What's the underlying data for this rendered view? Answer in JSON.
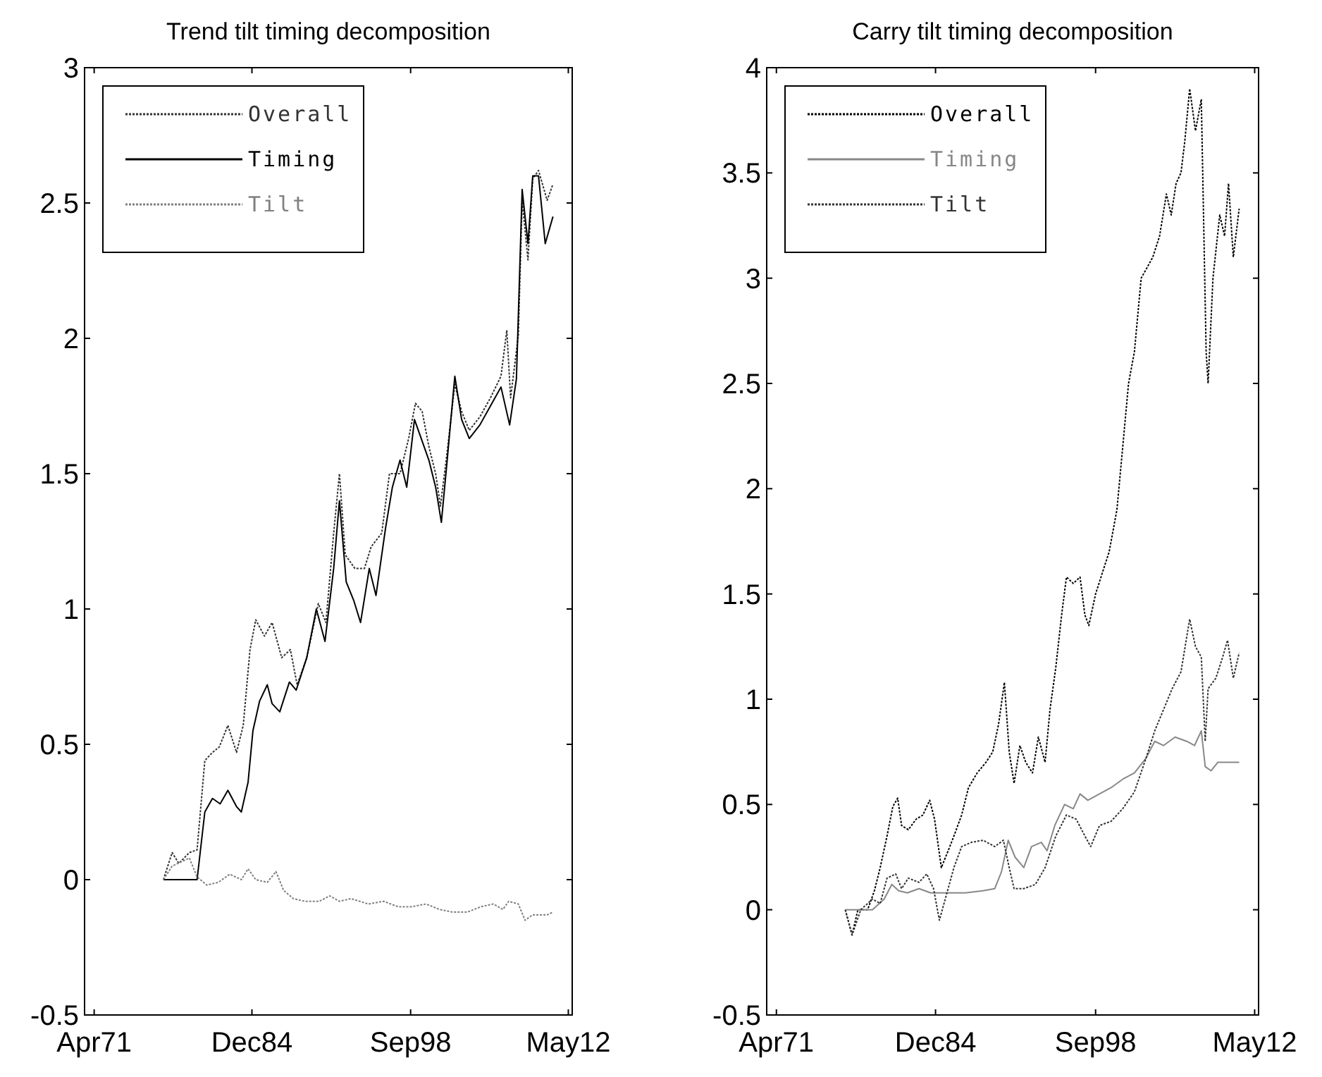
{
  "chart_data": [
    {
      "type": "line",
      "title": "Trend tilt timing decomposition",
      "xlim": [
        "1970-06",
        "2012-09"
      ],
      "xticks": [
        {
          "value": "1971-04",
          "label": "Apr71"
        },
        {
          "value": "1984-12",
          "label": "Dec84"
        },
        {
          "value": "1998-09",
          "label": "Sep98"
        },
        {
          "value": "2012-05",
          "label": "May12"
        }
      ],
      "ylim": [
        -0.5,
        3
      ],
      "yticks": [
        -0.5,
        0,
        0.5,
        1,
        1.5,
        2,
        2.5,
        3
      ],
      "legend": "top left",
      "grid": false,
      "series": [
        {
          "name": "Overall",
          "color": "#333333",
          "line_style": "dotted",
          "x": [
            "1977-04",
            "1978-01",
            "1978-08",
            "1979-07",
            "1980-03",
            "1980-11",
            "1981-07",
            "1982-02",
            "1982-11",
            "1983-08",
            "1984-03",
            "1984-10",
            "1985-04",
            "1986-01",
            "1986-09",
            "1987-07",
            "1988-04",
            "1988-11",
            "1989-09",
            "1990-09",
            "1991-05",
            "1992-01",
            "1992-07",
            "1993-01",
            "1993-11",
            "1994-09",
            "1995-04",
            "1996-03",
            "1996-11",
            "1997-10",
            "1998-07",
            "1999-02",
            "1999-09",
            "2000-04",
            "2000-11",
            "2001-04",
            "2001-11",
            "2002-07",
            "2003-02",
            "2003-10",
            "2004-09",
            "2005-08",
            "2006-07",
            "2007-01",
            "2007-05",
            "2008-01",
            "2008-05",
            "2008-11",
            "2009-04",
            "2009-10",
            "2010-07",
            "2011-01"
          ],
          "values": [
            0,
            0.1,
            0.06,
            0.1,
            0.11,
            0.44,
            0.47,
            0.49,
            0.57,
            0.47,
            0.57,
            0.85,
            0.96,
            0.9,
            0.95,
            0.82,
            0.85,
            0.72,
            0.82,
            1.02,
            0.95,
            1.28,
            1.5,
            1.2,
            1.15,
            1.15,
            1.23,
            1.28,
            1.5,
            1.5,
            1.63,
            1.76,
            1.73,
            1.6,
            1.5,
            1.38,
            1.58,
            1.83,
            1.73,
            1.66,
            1.71,
            1.78,
            1.86,
            2.03,
            1.78,
            2.01,
            2.51,
            2.29,
            2.59,
            2.62,
            2.51,
            2.57
          ]
        },
        {
          "name": "Timing",
          "color": "#000000",
          "line_style": "solid",
          "x": [
            "1977-04",
            "1980-03",
            "1980-11",
            "1981-07",
            "1982-03",
            "1982-11",
            "1983-08",
            "1984-01",
            "1984-08",
            "1985-01",
            "1985-08",
            "1986-04",
            "1986-09",
            "1987-05",
            "1988-03",
            "1988-10",
            "1989-09",
            "1990-07",
            "1991-04",
            "1992-01",
            "1992-07",
            "1993-02",
            "1993-10",
            "1994-05",
            "1995-02",
            "1995-09",
            "1996-07",
            "1997-02",
            "1997-10",
            "1998-05",
            "1999-01",
            "1999-09",
            "2000-04",
            "2000-11",
            "2001-05",
            "2001-11",
            "2002-07",
            "2003-02",
            "2003-10",
            "2004-09",
            "2005-08",
            "2006-07",
            "2007-04",
            "2007-11",
            "2008-05",
            "2008-11",
            "2009-04",
            "2009-10",
            "2010-05",
            "2011-01"
          ],
          "values": [
            0,
            0,
            0.25,
            0.3,
            0.28,
            0.33,
            0.27,
            0.25,
            0.36,
            0.55,
            0.66,
            0.72,
            0.65,
            0.62,
            0.73,
            0.7,
            0.82,
            1,
            0.88,
            1.15,
            1.4,
            1.1,
            1.03,
            0.95,
            1.15,
            1.05,
            1.3,
            1.45,
            1.55,
            1.45,
            1.7,
            1.62,
            1.55,
            1.45,
            1.32,
            1.55,
            1.86,
            1.7,
            1.63,
            1.68,
            1.75,
            1.82,
            1.68,
            1.85,
            2.55,
            2.35,
            2.6,
            2.6,
            2.35,
            2.45
          ]
        },
        {
          "name": "Tilt",
          "color": "#808080",
          "line_style": "dotted",
          "x": [
            "1977-04",
            "1978-01",
            "1979-07",
            "1980-03",
            "1981-01",
            "1982-01",
            "1983-01",
            "1984-01",
            "1984-08",
            "1985-04",
            "1986-04",
            "1987-01",
            "1987-09",
            "1988-07",
            "1989-07",
            "1990-10",
            "1991-09",
            "1992-07",
            "1993-07",
            "1995-01",
            "1996-05",
            "1997-08",
            "1998-10",
            "2000-01",
            "2001-03",
            "2002-05",
            "2003-08",
            "2004-10",
            "2005-11",
            "2006-09",
            "2007-03",
            "2008-01",
            "2008-08",
            "2009-04",
            "2010-07",
            "2011-01"
          ],
          "values": [
            0,
            0.05,
            0.08,
            0.01,
            -0.02,
            -0.01,
            0.02,
            0,
            0.04,
            0,
            -0.01,
            0.03,
            -0.04,
            -0.07,
            -0.08,
            -0.08,
            -0.06,
            -0.08,
            -0.07,
            -0.09,
            -0.08,
            -0.1,
            -0.1,
            -0.09,
            -0.11,
            -0.12,
            -0.12,
            -0.1,
            -0.09,
            -0.11,
            -0.08,
            -0.09,
            -0.15,
            -0.13,
            -0.13,
            -0.12
          ]
        }
      ]
    },
    {
      "type": "line",
      "title": "Carry tilt timing decomposition",
      "xlim": [
        "1970-06",
        "2012-09"
      ],
      "xticks": [
        {
          "value": "1971-04",
          "label": "Apr71"
        },
        {
          "value": "1984-12",
          "label": "Dec84"
        },
        {
          "value": "1998-09",
          "label": "Sep98"
        },
        {
          "value": "2012-05",
          "label": "May12"
        }
      ],
      "ylim": [
        -0.5,
        4
      ],
      "yticks": [
        -0.5,
        0,
        0.5,
        1,
        1.5,
        2,
        2.5,
        3,
        3.5,
        4
      ],
      "legend": "top left",
      "grid": false,
      "series": [
        {
          "name": "Overall",
          "color": "#000000",
          "line_style": "dotted",
          "x": [
            "1977-03",
            "1977-10",
            "1978-04",
            "1979-02",
            "1979-09",
            "1980-03",
            "1980-10",
            "1981-04",
            "1981-09",
            "1982-01",
            "1982-08",
            "1983-04",
            "1983-11",
            "1984-06",
            "1984-11",
            "1985-06",
            "1986-01",
            "1986-07",
            "1987-03",
            "1987-10",
            "1988-07",
            "1989-04",
            "1989-11",
            "1990-05",
            "1990-11",
            "1991-04",
            "1991-09",
            "1992-03",
            "1992-09",
            "1993-04",
            "1993-10",
            "1994-05",
            "1994-10",
            "1995-04",
            "1995-10",
            "1996-03",
            "1996-10",
            "1997-05",
            "1997-10",
            "1998-02",
            "1998-09",
            "1999-04",
            "1999-11",
            "2000-07",
            "2001-01",
            "2001-07",
            "2002-01",
            "2002-08",
            "2003-02",
            "2003-08",
            "2004-03",
            "2004-10",
            "2005-03",
            "2005-08",
            "2006-01",
            "2006-05",
            "2006-10",
            "2007-04",
            "2007-10",
            "2008-03",
            "2008-05",
            "2008-10",
            "2009-05",
            "2009-10",
            "2010-02",
            "2010-07",
            "2011-01"
          ],
          "values": [
            0,
            -0.12,
            0,
            0,
            0.09,
            0.2,
            0.35,
            0.49,
            0.53,
            0.4,
            0.38,
            0.43,
            0.45,
            0.52,
            0.43,
            0.2,
            0.28,
            0.35,
            0.45,
            0.58,
            0.65,
            0.7,
            0.75,
            0.88,
            1.08,
            0.75,
            0.6,
            0.78,
            0.7,
            0.65,
            0.82,
            0.7,
            0.95,
            1.15,
            1.4,
            1.58,
            1.55,
            1.58,
            1.4,
            1.35,
            1.5,
            1.6,
            1.7,
            1.9,
            2.2,
            2.5,
            2.65,
            3,
            3.05,
            3.1,
            3.2,
            3.4,
            3.3,
            3.45,
            3.5,
            3.65,
            3.9,
            3.7,
            3.85,
            2.65,
            2.5,
            3,
            3.3,
            3.2,
            3.45,
            3.1,
            3.33
          ]
        },
        {
          "name": "Timing",
          "color": "#888888",
          "line_style": "solid",
          "x": [
            "1977-03",
            "1978-07",
            "1979-07",
            "1980-07",
            "1981-03",
            "1981-10",
            "1982-07",
            "1983-07",
            "1984-07",
            "1986-01",
            "1987-07",
            "1989-01",
            "1990-01",
            "1990-08",
            "1991-03",
            "1991-10",
            "1992-07",
            "1993-03",
            "1994-01",
            "1994-07",
            "1995-03",
            "1996-01",
            "1996-10",
            "1997-05",
            "1998-01",
            "1999-01",
            "2000-01",
            "2001-01",
            "2002-01",
            "2003-01",
            "2003-10",
            "2004-07",
            "2005-07",
            "2006-07",
            "2007-03",
            "2007-10",
            "2008-02",
            "2008-08",
            "2009-03",
            "2011-01"
          ],
          "values": [
            0,
            0,
            0,
            0.05,
            0.12,
            0.09,
            0.08,
            0.1,
            0.08,
            0.08,
            0.08,
            0.09,
            0.1,
            0.18,
            0.33,
            0.25,
            0.2,
            0.3,
            0.32,
            0.28,
            0.4,
            0.5,
            0.48,
            0.55,
            0.52,
            0.55,
            0.58,
            0.62,
            0.65,
            0.72,
            0.8,
            0.78,
            0.82,
            0.8,
            0.78,
            0.85,
            0.68,
            0.66,
            0.7,
            0.7
          ]
        },
        {
          "name": "Tilt",
          "color": "#333333",
          "line_style": "dotted",
          "x": [
            "1977-03",
            "1977-10",
            "1978-07",
            "1979-07",
            "1980-03",
            "1980-10",
            "1981-07",
            "1982-01",
            "1982-08",
            "1983-07",
            "1984-03",
            "1984-10",
            "1985-04",
            "1985-10",
            "1986-07",
            "1987-03",
            "1988-01",
            "1989-01",
            "1990-01",
            "1990-10",
            "1991-04",
            "1991-09",
            "1992-07",
            "1993-07",
            "1994-05",
            "1995-04",
            "1996-03",
            "1997-01",
            "1997-10",
            "1998-04",
            "1999-01",
            "2000-01",
            "2001-01",
            "2002-01",
            "2003-01",
            "2003-10",
            "2004-07",
            "2005-04",
            "2006-01",
            "2006-10",
            "2007-04",
            "2007-10",
            "2008-02",
            "2008-05",
            "2009-01",
            "2009-08",
            "2010-01",
            "2010-07",
            "2011-01"
          ],
          "values": [
            0,
            -0.12,
            0,
            0.05,
            0.03,
            0.15,
            0.17,
            0.1,
            0.15,
            0.13,
            0.17,
            0.1,
            -0.05,
            0.05,
            0.2,
            0.3,
            0.32,
            0.33,
            0.3,
            0.33,
            0.2,
            0.1,
            0.1,
            0.12,
            0.2,
            0.35,
            0.45,
            0.43,
            0.35,
            0.3,
            0.4,
            0.42,
            0.48,
            0.56,
            0.72,
            0.85,
            0.95,
            1.05,
            1.13,
            1.38,
            1.25,
            1.2,
            0.8,
            1.05,
            1.1,
            1.2,
            1.28,
            1.1,
            1.22
          ]
        }
      ]
    }
  ]
}
